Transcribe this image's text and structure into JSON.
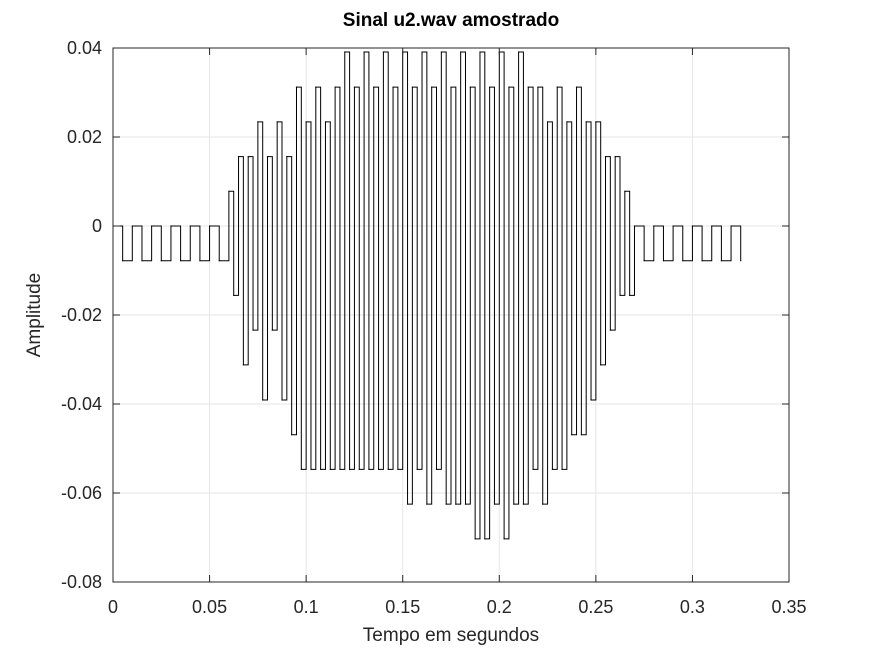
{
  "chart_data": {
    "type": "line",
    "title": "Sinal u2.wav amostrado",
    "xlabel": "Tempo em segundos",
    "ylabel": "Amplitude",
    "xlim": [
      0,
      0.35
    ],
    "ylim": [
      -0.08,
      0.04
    ],
    "grid": true,
    "x_ticks": [
      0,
      0.05,
      0.1,
      0.15,
      0.2,
      0.25,
      0.3,
      0.35
    ],
    "x_tick_labels": [
      "0",
      "0.05",
      "0.1",
      "0.15",
      "0.2",
      "0.25",
      "0.3",
      "0.35"
    ],
    "y_ticks": [
      -0.08,
      -0.06,
      -0.04,
      -0.02,
      0,
      0.02,
      0.04
    ],
    "y_tick_labels": [
      "-0.08",
      "-0.06",
      "-0.04",
      "-0.02",
      "0",
      "0.02",
      "0.04"
    ],
    "series": [
      {
        "color": "#000000",
        "x": [
          0,
          0.005,
          0.01,
          0.015,
          0.02,
          0.025,
          0.03,
          0.035,
          0.04,
          0.045,
          0.05,
          0.055,
          0.06,
          0.0625,
          0.065,
          0.0675,
          0.07,
          0.0725,
          0.075,
          0.0775,
          0.08,
          0.0825,
          0.085,
          0.0875,
          0.09,
          0.0925,
          0.095,
          0.0975,
          0.1,
          0.1025,
          0.105,
          0.1075,
          0.11,
          0.1125,
          0.115,
          0.1175,
          0.12,
          0.1225,
          0.125,
          0.1275,
          0.13,
          0.1325,
          0.135,
          0.1375,
          0.14,
          0.1425,
          0.145,
          0.1475,
          0.15,
          0.1525,
          0.155,
          0.1575,
          0.16,
          0.1625,
          0.165,
          0.1675,
          0.17,
          0.1725,
          0.175,
          0.1775,
          0.18,
          0.1825,
          0.185,
          0.1875,
          0.19,
          0.1925,
          0.195,
          0.1975,
          0.2,
          0.2025,
          0.205,
          0.2075,
          0.21,
          0.2125,
          0.215,
          0.2175,
          0.22,
          0.2225,
          0.225,
          0.2275,
          0.23,
          0.2325,
          0.235,
          0.2375,
          0.24,
          0.2425,
          0.245,
          0.2475,
          0.25,
          0.2525,
          0.255,
          0.2575,
          0.26,
          0.2625,
          0.265,
          0.2675,
          0.27,
          0.275,
          0.28,
          0.285,
          0.29,
          0.295,
          0.3,
          0.305,
          0.31,
          0.315,
          0.32,
          0.325
        ],
        "y": [
          0,
          -0.0078,
          0,
          -0.0078,
          0,
          -0.0078,
          0,
          -0.0078,
          0,
          -0.0078,
          0,
          -0.0078,
          0.0078,
          -0.0156,
          0.0156,
          -0.0312,
          0.0156,
          -0.0234,
          0.0234,
          -0.0391,
          0.0156,
          -0.0234,
          0.0234,
          -0.0391,
          0.0156,
          -0.0469,
          0.0312,
          -0.0547,
          0.0234,
          -0.0547,
          0.0312,
          -0.0547,
          0.0234,
          -0.0547,
          0.0312,
          -0.0547,
          0.0391,
          -0.0547,
          0.0312,
          -0.0547,
          0.0391,
          -0.0547,
          0.0312,
          -0.0547,
          0.0391,
          -0.0547,
          0.0312,
          -0.0547,
          0.0391,
          -0.0625,
          0.0312,
          -0.0547,
          0.0391,
          -0.0625,
          0.0312,
          -0.0547,
          0.0391,
          -0.0625,
          0.0312,
          -0.0625,
          0.0391,
          -0.0625,
          0.0312,
          -0.0703,
          0.0391,
          -0.0703,
          0.0312,
          -0.0625,
          0.0391,
          -0.0703,
          0.0312,
          -0.0625,
          0.0391,
          -0.0625,
          0.0312,
          -0.0547,
          0.0312,
          -0.0625,
          0.0234,
          -0.0547,
          0.0312,
          -0.0547,
          0.0234,
          -0.0469,
          0.0312,
          -0.0469,
          0.0234,
          -0.0391,
          0.0234,
          -0.0312,
          0.0156,
          -0.0234,
          0.0156,
          -0.0156,
          0.0078,
          -0.0156,
          0,
          -0.0078,
          0,
          -0.0078,
          0,
          -0.0078,
          0,
          -0.0078,
          0,
          -0.0078,
          0,
          -0.0078
        ]
      }
    ]
  }
}
